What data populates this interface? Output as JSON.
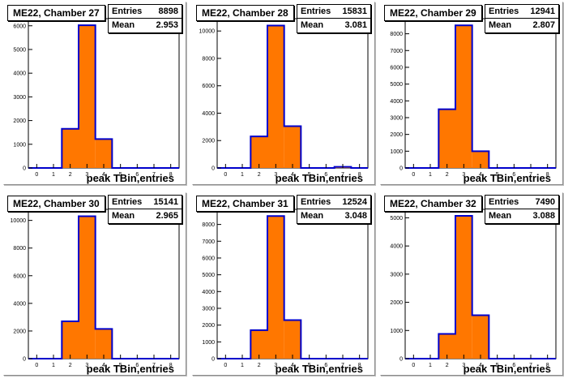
{
  "colors": {
    "fill": "#ff7700",
    "line": "#0000cc",
    "frame": "#000000"
  },
  "chart_data": [
    {
      "type": "bar",
      "title": "ME22, Chamber 27",
      "xlabel": "peak TBin,entries",
      "stats": {
        "entries_label": "Entries",
        "entries": "8898",
        "mean_label": "Mean",
        "mean": "2.953"
      },
      "x": [
        0,
        1,
        2,
        3,
        4,
        5,
        6,
        7,
        8
      ],
      "values": [
        0,
        0,
        1650,
        6020,
        1220,
        0,
        0,
        0,
        0
      ],
      "xlim": [
        -0.5,
        8.5
      ],
      "ylim": [
        0,
        6300
      ],
      "yticks": [
        0,
        1000,
        2000,
        3000,
        4000,
        5000,
        6000
      ],
      "xticks": [
        "0",
        "1",
        "2",
        "3",
        "4",
        "5",
        "6",
        "7",
        "8"
      ]
    },
    {
      "type": "bar",
      "title": "ME22, Chamber 28",
      "xlabel": "peak TBin,entries",
      "stats": {
        "entries_label": "Entries",
        "entries": "15831",
        "mean_label": "Mean",
        "mean": "3.081"
      },
      "x": [
        0,
        1,
        2,
        3,
        4,
        5,
        6,
        7,
        8
      ],
      "values": [
        0,
        0,
        2300,
        10400,
        3050,
        0,
        0,
        80,
        0
      ],
      "xlim": [
        -0.5,
        8.5
      ],
      "ylim": [
        0,
        10900
      ],
      "yticks": [
        0,
        2000,
        4000,
        6000,
        8000,
        10000
      ],
      "xticks": [
        "0",
        "1",
        "2",
        "3",
        "4",
        "5",
        "6",
        "7",
        "8"
      ]
    },
    {
      "type": "bar",
      "title": "ME22, Chamber 29",
      "xlabel": "peak TBin,entries",
      "stats": {
        "entries_label": "Entries",
        "entries": "12941",
        "mean_label": "Mean",
        "mean": "2.807"
      },
      "x": [
        0,
        1,
        2,
        3,
        4,
        5,
        6,
        7,
        8
      ],
      "values": [
        0,
        0,
        3500,
        8500,
        1000,
        0,
        0,
        0,
        0
      ],
      "xlim": [
        -0.5,
        8.5
      ],
      "ylim": [
        0,
        8900
      ],
      "yticks": [
        0,
        1000,
        2000,
        3000,
        4000,
        5000,
        6000,
        7000,
        8000
      ],
      "xticks": [
        "0",
        "1",
        "2",
        "3",
        "4",
        "5",
        "6",
        "7",
        "8"
      ]
    },
    {
      "type": "bar",
      "title": "ME22, Chamber 30",
      "xlabel": "peak TBin,entries",
      "stats": {
        "entries_label": "Entries",
        "entries": "15141",
        "mean_label": "Mean",
        "mean": "2.965"
      },
      "x": [
        0,
        1,
        2,
        3,
        4,
        5,
        6,
        7,
        8
      ],
      "values": [
        0,
        0,
        2700,
        10300,
        2150,
        0,
        0,
        0,
        0
      ],
      "xlim": [
        -0.5,
        8.5
      ],
      "ylim": [
        0,
        10800
      ],
      "yticks": [
        0,
        2000,
        4000,
        6000,
        8000,
        10000
      ],
      "xticks": [
        "0",
        "1",
        "2",
        "3",
        "4",
        "5",
        "6",
        "7",
        "8"
      ]
    },
    {
      "type": "bar",
      "title": "ME22, Chamber 31",
      "xlabel": "peak TBin,entries",
      "stats": {
        "entries_label": "Entries",
        "entries": "12524",
        "mean_label": "Mean",
        "mean": "3.048"
      },
      "x": [
        0,
        1,
        2,
        3,
        4,
        5,
        6,
        7,
        8
      ],
      "values": [
        0,
        0,
        1700,
        8500,
        2300,
        0,
        0,
        0,
        0
      ],
      "xlim": [
        -0.5,
        8.5
      ],
      "ylim": [
        0,
        8900
      ],
      "yticks": [
        0,
        1000,
        2000,
        3000,
        4000,
        5000,
        6000,
        7000,
        8000
      ],
      "xticks": [
        "0",
        "1",
        "2",
        "3",
        "4",
        "5",
        "6",
        "7",
        "8"
      ]
    },
    {
      "type": "bar",
      "title": "ME22, Chamber 32",
      "xlabel": "peak TBin,entries",
      "stats": {
        "entries_label": "Entries",
        "entries": "7490",
        "mean_label": "Mean",
        "mean": "3.088"
      },
      "x": [
        0,
        1,
        2,
        3,
        4,
        5,
        6,
        7,
        8
      ],
      "values": [
        0,
        0,
        880,
        5070,
        1540,
        0,
        0,
        0,
        0
      ],
      "xlim": [
        -0.5,
        8.5
      ],
      "ylim": [
        0,
        5300
      ],
      "yticks": [
        0,
        1000,
        2000,
        3000,
        4000,
        5000
      ],
      "xticks": [
        "0",
        "1",
        "2",
        "3",
        "4",
        "5",
        "6",
        "7",
        "8"
      ]
    }
  ]
}
